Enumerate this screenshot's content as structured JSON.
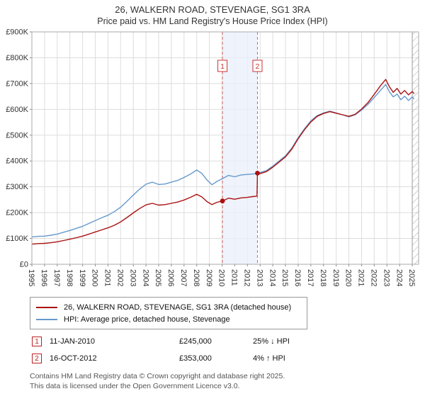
{
  "header": {
    "title": "26, WALKERN ROAD, STEVENAGE, SG1 3RA",
    "subtitle": "Price paid vs. HM Land Registry's House Price Index (HPI)"
  },
  "legend": {
    "items": [
      {
        "label": "26, WALKERN ROAD, STEVENAGE, SG1 3RA (detached house)",
        "color": "#aa1111"
      },
      {
        "label": "HPI: Average price, detached house, Stevenage",
        "color": "#6699cc"
      }
    ]
  },
  "transactions": [
    {
      "num": "1",
      "date": "11-JAN-2010",
      "price": "£245,000",
      "hpi": "25% ↓ HPI"
    },
    {
      "num": "2",
      "date": "16-OCT-2012",
      "price": "£353,000",
      "hpi": "4% ↑ HPI"
    }
  ],
  "footer": {
    "line1": "Contains HM Land Registry data © Crown copyright and database right 2025.",
    "line2": "This data is licensed under the Open Government Licence v3.0."
  },
  "chart_data": {
    "type": "line",
    "title": "26, WALKERN ROAD, STEVENAGE, SG1 3RA",
    "subtitle": "Price paid vs. HM Land Registry's House Price Index (HPI)",
    "x_range": [
      1995,
      2025.5
    ],
    "y_range": [
      0,
      900000
    ],
    "grid": true,
    "legend_position": "bottom",
    "hatch_start": 2025.0,
    "shaded_region": [
      2010.03,
      2012.79
    ],
    "y_ticks": [
      {
        "v": 0,
        "label": "£0"
      },
      {
        "v": 100000,
        "label": "£100K"
      },
      {
        "v": 200000,
        "label": "£200K"
      },
      {
        "v": 300000,
        "label": "£300K"
      },
      {
        "v": 400000,
        "label": "£400K"
      },
      {
        "v": 500000,
        "label": "£500K"
      },
      {
        "v": 600000,
        "label": "£600K"
      },
      {
        "v": 700000,
        "label": "£700K"
      },
      {
        "v": 800000,
        "label": "£800K"
      },
      {
        "v": 900000,
        "label": "£900K"
      }
    ],
    "x_ticks": [
      1995,
      1996,
      1997,
      1998,
      1999,
      2000,
      2001,
      2002,
      2003,
      2004,
      2005,
      2006,
      2007,
      2008,
      2009,
      2010,
      2011,
      2012,
      2013,
      2014,
      2015,
      2016,
      2017,
      2018,
      2019,
      2020,
      2021,
      2022,
      2023,
      2024,
      2025
    ],
    "markers": [
      {
        "label": "1",
        "x": 2010.03,
        "y": 245000
      },
      {
        "label": "2",
        "x": 2012.79,
        "y": 353000
      }
    ],
    "series": [
      {
        "name": "26, WALKERN ROAD, STEVENAGE, SG1 3RA (detached house)",
        "color": "#aa1111",
        "points": [
          [
            1995.0,
            78000
          ],
          [
            1995.5,
            80000
          ],
          [
            1996.0,
            81000
          ],
          [
            1996.5,
            83500
          ],
          [
            1997.0,
            87000
          ],
          [
            1997.5,
            92000
          ],
          [
            1998.0,
            97000
          ],
          [
            1998.5,
            103000
          ],
          [
            1999.0,
            109000
          ],
          [
            1999.5,
            117000
          ],
          [
            2000.0,
            125000
          ],
          [
            2000.5,
            133000
          ],
          [
            2001.0,
            141000
          ],
          [
            2001.5,
            151000
          ],
          [
            2002.0,
            164000
          ],
          [
            2002.5,
            181000
          ],
          [
            2003.0,
            199000
          ],
          [
            2003.5,
            216000
          ],
          [
            2004.0,
            230000
          ],
          [
            2004.5,
            236000
          ],
          [
            2005.0,
            229000
          ],
          [
            2005.5,
            231000
          ],
          [
            2006.0,
            236000
          ],
          [
            2006.5,
            241000
          ],
          [
            2007.0,
            249000
          ],
          [
            2007.5,
            259000
          ],
          [
            2008.0,
            271000
          ],
          [
            2008.4,
            261000
          ],
          [
            2008.8,
            243000
          ],
          [
            2009.2,
            231000
          ],
          [
            2009.6,
            240000
          ],
          [
            2010.03,
            245000
          ],
          [
            2010.5,
            256000
          ],
          [
            2011.0,
            252000
          ],
          [
            2011.5,
            257000
          ],
          [
            2012.0,
            259000
          ],
          [
            2012.4,
            262000
          ],
          [
            2012.75,
            264000
          ],
          [
            2012.79,
            353000
          ],
          [
            2013.0,
            351000
          ],
          [
            2013.5,
            359000
          ],
          [
            2014.0,
            376000
          ],
          [
            2014.5,
            396000
          ],
          [
            2015.0,
            416000
          ],
          [
            2015.5,
            446000
          ],
          [
            2016.0,
            486000
          ],
          [
            2016.5,
            521000
          ],
          [
            2017.0,
            551000
          ],
          [
            2017.5,
            573000
          ],
          [
            2018.0,
            584000
          ],
          [
            2018.5,
            591000
          ],
          [
            2019.0,
            585000
          ],
          [
            2019.5,
            579000
          ],
          [
            2020.0,
            573000
          ],
          [
            2020.5,
            581000
          ],
          [
            2021.0,
            601000
          ],
          [
            2021.5,
            626000
          ],
          [
            2022.0,
            658000
          ],
          [
            2022.5,
            692000
          ],
          [
            2022.9,
            716000
          ],
          [
            2023.2,
            687000
          ],
          [
            2023.5,
            666000
          ],
          [
            2023.8,
            681000
          ],
          [
            2024.1,
            659000
          ],
          [
            2024.4,
            673000
          ],
          [
            2024.7,
            656000
          ],
          [
            2025.0,
            669000
          ],
          [
            2025.15,
            661000
          ]
        ]
      },
      {
        "name": "HPI: Average price, detached house, Stevenage",
        "color": "#6699cc",
        "points": [
          [
            1995.0,
            106000
          ],
          [
            1995.5,
            108000
          ],
          [
            1996.0,
            109000
          ],
          [
            1996.5,
            112500
          ],
          [
            1997.0,
            117000
          ],
          [
            1997.5,
            124000
          ],
          [
            1998.0,
            131000
          ],
          [
            1998.5,
            139000
          ],
          [
            1999.0,
            147000
          ],
          [
            1999.5,
            158000
          ],
          [
            2000.0,
            169000
          ],
          [
            2000.5,
            180000
          ],
          [
            2001.0,
            190000
          ],
          [
            2001.5,
            204000
          ],
          [
            2002.0,
            221000
          ],
          [
            2002.5,
            244000
          ],
          [
            2003.0,
            268000
          ],
          [
            2003.5,
            291000
          ],
          [
            2004.0,
            310000
          ],
          [
            2004.5,
            318000
          ],
          [
            2005.0,
            309000
          ],
          [
            2005.5,
            311000
          ],
          [
            2006.0,
            318000
          ],
          [
            2006.5,
            325000
          ],
          [
            2007.0,
            336000
          ],
          [
            2007.5,
            349000
          ],
          [
            2008.0,
            365000
          ],
          [
            2008.4,
            352000
          ],
          [
            2008.8,
            327000
          ],
          [
            2009.2,
            308000
          ],
          [
            2009.6,
            321000
          ],
          [
            2010.0,
            331000
          ],
          [
            2010.5,
            344000
          ],
          [
            2011.0,
            339000
          ],
          [
            2011.5,
            346000
          ],
          [
            2012.0,
            348000
          ],
          [
            2012.5,
            350000
          ],
          [
            2013.0,
            355000
          ],
          [
            2013.5,
            363000
          ],
          [
            2014.0,
            380000
          ],
          [
            2014.5,
            400000
          ],
          [
            2015.0,
            420000
          ],
          [
            2015.5,
            450000
          ],
          [
            2016.0,
            490000
          ],
          [
            2016.5,
            525000
          ],
          [
            2017.0,
            555000
          ],
          [
            2017.5,
            576000
          ],
          [
            2018.0,
            586000
          ],
          [
            2018.5,
            593000
          ],
          [
            2019.0,
            586000
          ],
          [
            2019.5,
            579000
          ],
          [
            2020.0,
            571000
          ],
          [
            2020.5,
            579000
          ],
          [
            2021.0,
            597000
          ],
          [
            2021.5,
            619000
          ],
          [
            2022.0,
            646000
          ],
          [
            2022.5,
            674000
          ],
          [
            2022.9,
            696000
          ],
          [
            2023.2,
            668000
          ],
          [
            2023.5,
            648000
          ],
          [
            2023.8,
            659000
          ],
          [
            2024.1,
            637000
          ],
          [
            2024.4,
            651000
          ],
          [
            2024.7,
            634000
          ],
          [
            2025.0,
            648000
          ],
          [
            2025.15,
            640000
          ]
        ]
      }
    ]
  }
}
